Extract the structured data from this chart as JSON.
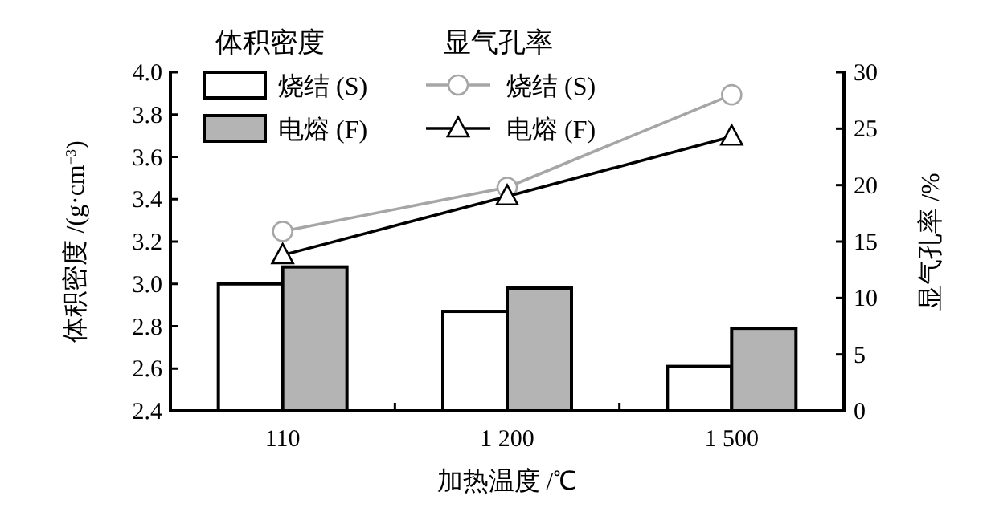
{
  "chart_data": {
    "type": "bar",
    "xlabel": "加热温度 /℃",
    "ylabel": "体积密度 /(g·cm$^{−3}$)",
    "y2label": "显气孔率 /%",
    "categories": [
      "110",
      "1 200",
      "1 500"
    ],
    "series": [
      {
        "name": "烧结 (S)",
        "color": "#ffffff",
        "values": [
          3.0,
          2.87,
          2.61
        ]
      },
      {
        "name": "电熔 (F)",
        "color": "#b4b4b4",
        "values": [
          3.08,
          2.98,
          2.79
        ]
      },
      {
        "name": "烧结 (S)",
        "type": "line",
        "axis": "y2",
        "marker": "circle",
        "color": "#a6a6a6",
        "values": [
          15.9,
          19.8,
          28
        ]
      },
      {
        "name": "电熔 (F)",
        "type": "line",
        "axis": "y2",
        "marker": "triangle",
        "color": "#000000",
        "values": [
          13.8,
          19,
          24.3
        ]
      }
    ],
    "annotations": [
      "体积密度",
      "显气孔率"
    ],
    "ylim": [
      2.4,
      4.0
    ],
    "yticks": [
      {
        "value": 2.4,
        "label": "2.4"
      },
      {
        "value": 2.6,
        "label": "2.6"
      },
      {
        "value": 2.8,
        "label": "2.8"
      },
      {
        "value": 3.0,
        "label": "3.0"
      },
      {
        "value": 3.2,
        "label": "3.2"
      },
      {
        "value": 3.4,
        "label": "3.4"
      },
      {
        "value": 3.6,
        "label": "3.6"
      },
      {
        "value": 3.8,
        "label": "3.8"
      },
      {
        "value": 4.0,
        "label": "4.0"
      }
    ],
    "y2lim": [
      0,
      30
    ],
    "y2ticks": [
      0,
      5,
      10,
      15,
      20,
      25,
      30
    ],
    "legend": "top",
    "grid": false
  }
}
